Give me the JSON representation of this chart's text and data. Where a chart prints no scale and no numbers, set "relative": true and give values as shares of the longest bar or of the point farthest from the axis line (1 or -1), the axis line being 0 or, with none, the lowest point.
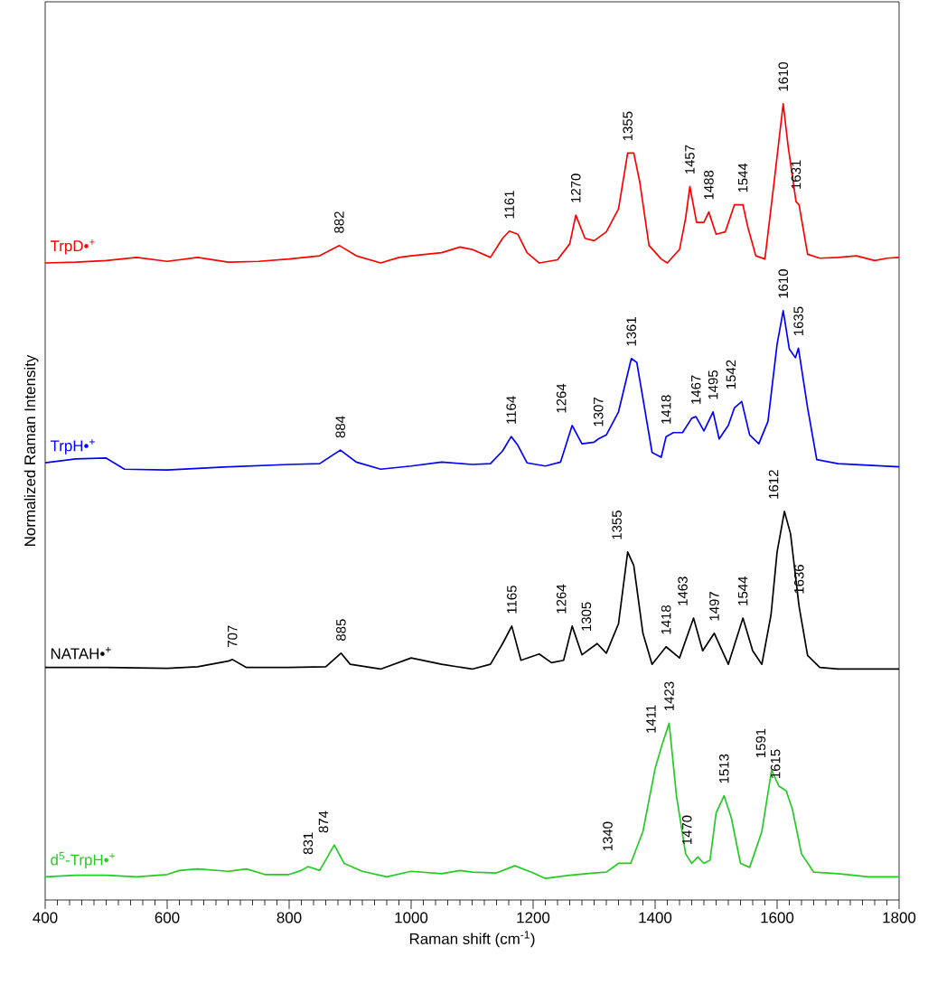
{
  "chart_data": {
    "type": "line",
    "relative": true,
    "xlabel": "Raman shift (cm$^{-1}$)",
    "ylabel": "Normalized Raman Intensity",
    "xlim": [
      400,
      1800
    ],
    "xticks": [
      400,
      600,
      800,
      1000,
      1200,
      1400,
      1600,
      1800
    ],
    "series": [
      {
        "name": "TrpD•$^{+}$",
        "color": "#ff0000",
        "x": [
          400,
          450,
          500,
          550,
          600,
          650,
          700,
          750,
          800,
          850,
          882,
          910,
          950,
          980,
          1000,
          1050,
          1080,
          1100,
          1130,
          1150,
          1161,
          1175,
          1190,
          1210,
          1240,
          1260,
          1270,
          1285,
          1300,
          1320,
          1340,
          1355,
          1365,
          1375,
          1390,
          1410,
          1420,
          1440,
          1450,
          1457,
          1468,
          1480,
          1488,
          1500,
          1515,
          1530,
          1544,
          1552,
          1565,
          1580,
          1595,
          1610,
          1618,
          1631,
          1636,
          1650,
          1670,
          1700,
          1730,
          1760,
          1780,
          1800
        ],
        "values": [
          0.8,
          0.801,
          0.803,
          0.807,
          0.802,
          0.807,
          0.801,
          0.802,
          0.805,
          0.809,
          0.822,
          0.809,
          0.8,
          0.807,
          0.809,
          0.813,
          0.82,
          0.817,
          0.807,
          0.831,
          0.84,
          0.836,
          0.813,
          0.8,
          0.804,
          0.824,
          0.86,
          0.831,
          0.828,
          0.839,
          0.868,
          0.938,
          0.938,
          0.901,
          0.822,
          0.805,
          0.8,
          0.817,
          0.856,
          0.896,
          0.851,
          0.851,
          0.864,
          0.836,
          0.839,
          0.873,
          0.873,
          0.845,
          0.809,
          0.805,
          0.901,
          1.0,
          0.947,
          0.877,
          0.873,
          0.811,
          0.806,
          0.807,
          0.809,
          0.803,
          0.806,
          0.807
        ]
      },
      {
        "name": "TrpH•$^{+}$",
        "color": "#0000ff",
        "x": [
          400,
          450,
          500,
          530,
          600,
          700,
          800,
          850,
          884,
          910,
          950,
          1000,
          1050,
          1100,
          1130,
          1150,
          1164,
          1175,
          1190,
          1220,
          1245,
          1264,
          1280,
          1300,
          1307,
          1320,
          1340,
          1361,
          1370,
          1380,
          1395,
          1410,
          1418,
          1430,
          1445,
          1460,
          1467,
          1480,
          1495,
          1505,
          1520,
          1530,
          1542,
          1555,
          1570,
          1585,
          1600,
          1610,
          1620,
          1630,
          1635,
          1650,
          1665,
          1700,
          1750,
          1800
        ],
        "values": [
          0.549,
          0.554,
          0.555,
          0.541,
          0.54,
          0.544,
          0.547,
          0.548,
          0.565,
          0.55,
          0.541,
          0.545,
          0.55,
          0.547,
          0.548,
          0.564,
          0.582,
          0.571,
          0.549,
          0.545,
          0.55,
          0.596,
          0.573,
          0.575,
          0.579,
          0.584,
          0.613,
          0.68,
          0.675,
          0.63,
          0.562,
          0.556,
          0.582,
          0.587,
          0.587,
          0.605,
          0.607,
          0.589,
          0.613,
          0.579,
          0.596,
          0.618,
          0.626,
          0.584,
          0.573,
          0.601,
          0.698,
          0.74,
          0.692,
          0.681,
          0.693,
          0.618,
          0.553,
          0.548,
          0.546,
          0.544
        ]
      },
      {
        "name": "NATAH•$^{+}$",
        "color": "#000000",
        "x": [
          400,
          500,
          600,
          650,
          700,
          707,
          730,
          800,
          860,
          885,
          900,
          950,
          1000,
          1050,
          1100,
          1130,
          1150,
          1165,
          1180,
          1210,
          1230,
          1250,
          1264,
          1280,
          1305,
          1320,
          1340,
          1355,
          1365,
          1380,
          1395,
          1418,
          1440,
          1463,
          1478,
          1497,
          1520,
          1544,
          1560,
          1575,
          1590,
          1600,
          1612,
          1622,
          1636,
          1650,
          1670,
          1700,
          1800
        ],
        "values": [
          0.292,
          0.292,
          0.291,
          0.293,
          0.3,
          0.302,
          0.292,
          0.292,
          0.293,
          0.31,
          0.296,
          0.29,
          0.304,
          0.296,
          0.29,
          0.296,
          0.322,
          0.344,
          0.301,
          0.309,
          0.298,
          0.301,
          0.344,
          0.308,
          0.322,
          0.31,
          0.347,
          0.437,
          0.42,
          0.335,
          0.296,
          0.318,
          0.304,
          0.354,
          0.313,
          0.335,
          0.296,
          0.354,
          0.313,
          0.296,
          0.358,
          0.437,
          0.488,
          0.46,
          0.369,
          0.307,
          0.292,
          0.29,
          0.29
        ]
      },
      {
        "name": "d$^{5}$-TrpH•$^{+}$",
        "color": "#22cc22",
        "x": [
          400,
          450,
          500,
          550,
          600,
          620,
          650,
          700,
          730,
          760,
          800,
          820,
          831,
          850,
          874,
          890,
          920,
          960,
          1000,
          1050,
          1080,
          1100,
          1140,
          1170,
          1200,
          1220,
          1260,
          1300,
          1320,
          1340,
          1360,
          1380,
          1400,
          1411,
          1423,
          1435,
          1450,
          1460,
          1470,
          1480,
          1490,
          1500,
          1513,
          1525,
          1540,
          1555,
          1575,
          1591,
          1603,
          1615,
          1625,
          1640,
          1660,
          1700,
          1750,
          1800
        ],
        "values": [
          0.029,
          0.031,
          0.031,
          0.029,
          0.032,
          0.037,
          0.039,
          0.036,
          0.039,
          0.032,
          0.032,
          0.037,
          0.042,
          0.037,
          0.069,
          0.046,
          0.036,
          0.029,
          0.036,
          0.033,
          0.037,
          0.035,
          0.034,
          0.043,
          0.034,
          0.027,
          0.031,
          0.034,
          0.035,
          0.046,
          0.046,
          0.086,
          0.165,
          0.194,
          0.222,
          0.131,
          0.058,
          0.046,
          0.054,
          0.046,
          0.05,
          0.109,
          0.131,
          0.103,
          0.046,
          0.041,
          0.086,
          0.163,
          0.143,
          0.137,
          0.114,
          0.058,
          0.035,
          0.033,
          0.029,
          0.029
        ]
      }
    ],
    "annotations": [
      {
        "text": "882",
        "x": 882,
        "y": 0.822
      },
      {
        "text": "1161",
        "x": 1161,
        "y": 0.84
      },
      {
        "text": "1270",
        "x": 1270,
        "y": 0.86
      },
      {
        "text": "1355",
        "x": 1355,
        "y": 0.938
      },
      {
        "text": "1457",
        "x": 1457,
        "y": 0.896
      },
      {
        "text": "1488",
        "x": 1488,
        "y": 0.864
      },
      {
        "text": "1544",
        "x": 1544,
        "y": 0.873
      },
      {
        "text": "1610",
        "x": 1610,
        "y": 1.0
      },
      {
        "text": "1631",
        "x": 1631,
        "y": 0.877
      },
      {
        "text": "884",
        "x": 884,
        "y": 0.565
      },
      {
        "text": "1164",
        "x": 1164,
        "y": 0.582
      },
      {
        "text": "1264",
        "x": 1264,
        "y": 0.596
      },
      {
        "text": "1307",
        "x": 1307,
        "y": 0.579
      },
      {
        "text": "1361",
        "x": 1361,
        "y": 0.68
      },
      {
        "text": "1418",
        "x": 1418,
        "y": 0.582
      },
      {
        "text": "1467",
        "x": 1467,
        "y": 0.607
      },
      {
        "text": "1495",
        "x": 1495,
        "y": 0.613
      },
      {
        "text": "1542",
        "x": 1542,
        "y": 0.626
      },
      {
        "text": "1610",
        "x": 1610,
        "y": 0.74
      },
      {
        "text": "1635",
        "x": 1635,
        "y": 0.693
      },
      {
        "text": "707",
        "x": 707,
        "y": 0.302
      },
      {
        "text": "885",
        "x": 885,
        "y": 0.31
      },
      {
        "text": "1165",
        "x": 1165,
        "y": 0.344
      },
      {
        "text": "1264",
        "x": 1264,
        "y": 0.344
      },
      {
        "text": "1305",
        "x": 1305,
        "y": 0.322
      },
      {
        "text": "1355",
        "x": 1355,
        "y": 0.437
      },
      {
        "text": "1418",
        "x": 1418,
        "y": 0.318
      },
      {
        "text": "1463",
        "x": 1463,
        "y": 0.354
      },
      {
        "text": "1497",
        "x": 1497,
        "y": 0.335
      },
      {
        "text": "1544",
        "x": 1544,
        "y": 0.354
      },
      {
        "text": "1612",
        "x": 1612,
        "y": 0.488
      },
      {
        "text": "1636",
        "x": 1636,
        "y": 0.369
      },
      {
        "text": "831",
        "x": 831,
        "y": 0.042
      },
      {
        "text": "874",
        "x": 874,
        "y": 0.069
      },
      {
        "text": "1340",
        "x": 1340,
        "y": 0.046
      },
      {
        "text": "1411",
        "x": 1411,
        "y": 0.194
      },
      {
        "text": "1423",
        "x": 1423,
        "y": 0.222
      },
      {
        "text": "1470",
        "x": 1470,
        "y": 0.054
      },
      {
        "text": "1513",
        "x": 1513,
        "y": 0.131
      },
      {
        "text": "1591",
        "x": 1591,
        "y": 0.163
      },
      {
        "text": "1615",
        "x": 1615,
        "y": 0.137
      }
    ]
  }
}
